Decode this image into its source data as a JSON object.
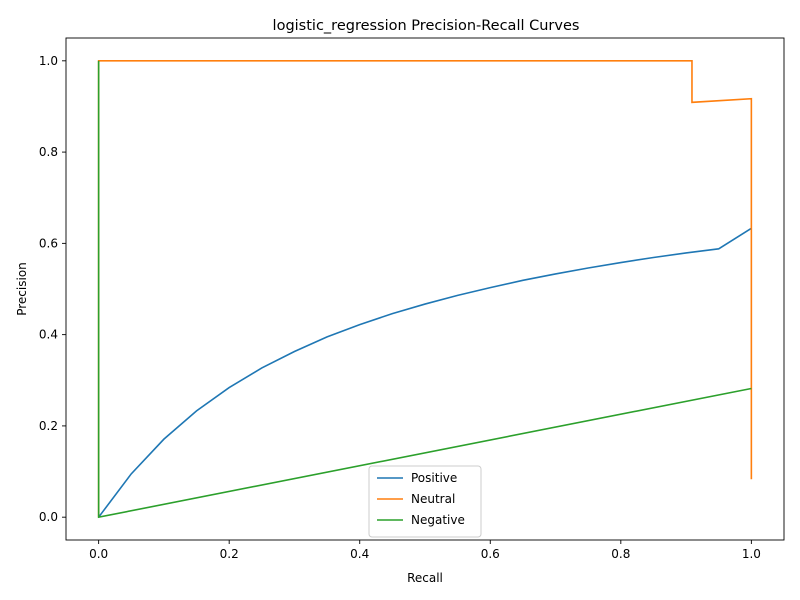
{
  "chart_data": {
    "type": "line",
    "title": "logistic_regression Precision-Recall Curves",
    "xlabel": "Recall",
    "ylabel": "Precision",
    "xlim": [
      -0.05,
      1.05
    ],
    "ylim": [
      -0.05,
      1.05
    ],
    "xticks": [
      0.0,
      0.2,
      0.4,
      0.6,
      0.8,
      1.0
    ],
    "xtick_labels": [
      "0.0",
      "0.2",
      "0.4",
      "0.6",
      "0.8",
      "1.0"
    ],
    "yticks": [
      0.0,
      0.2,
      0.4,
      0.6,
      0.8,
      1.0
    ],
    "ytick_labels": [
      "0.0",
      "0.2",
      "0.4",
      "0.6",
      "0.8",
      "1.0"
    ],
    "grid": false,
    "legend_position": "bottom-center",
    "series": [
      {
        "name": "Positive",
        "color": "#1f77b4",
        "points": [
          [
            0.0,
            0.0
          ],
          [
            0.05,
            0.095
          ],
          [
            0.1,
            0.171
          ],
          [
            0.15,
            0.233
          ],
          [
            0.2,
            0.284
          ],
          [
            0.25,
            0.327
          ],
          [
            0.3,
            0.363
          ],
          [
            0.35,
            0.395
          ],
          [
            0.4,
            0.422
          ],
          [
            0.45,
            0.446
          ],
          [
            0.5,
            0.467
          ],
          [
            0.55,
            0.486
          ],
          [
            0.6,
            0.503
          ],
          [
            0.65,
            0.519
          ],
          [
            0.7,
            0.533
          ],
          [
            0.75,
            0.546
          ],
          [
            0.8,
            0.558
          ],
          [
            0.85,
            0.569
          ],
          [
            0.9,
            0.579
          ],
          [
            0.95,
            0.588
          ],
          [
            1.0,
            0.633
          ],
          [
            1.0,
            0.633
          ]
        ]
      },
      {
        "name": "Neutral",
        "color": "#ff7f0e",
        "points": [
          [
            0.0,
            0.0
          ],
          [
            0.0,
            1.0
          ],
          [
            0.909,
            1.0
          ],
          [
            0.909,
            0.909
          ],
          [
            1.0,
            0.917
          ],
          [
            1.0,
            0.083
          ]
        ]
      },
      {
        "name": "Negative",
        "color": "#2ca02c",
        "points": [
          [
            0.0,
            1.0
          ],
          [
            0.0,
            0.0
          ],
          [
            1.0,
            0.282
          ]
        ]
      }
    ]
  }
}
